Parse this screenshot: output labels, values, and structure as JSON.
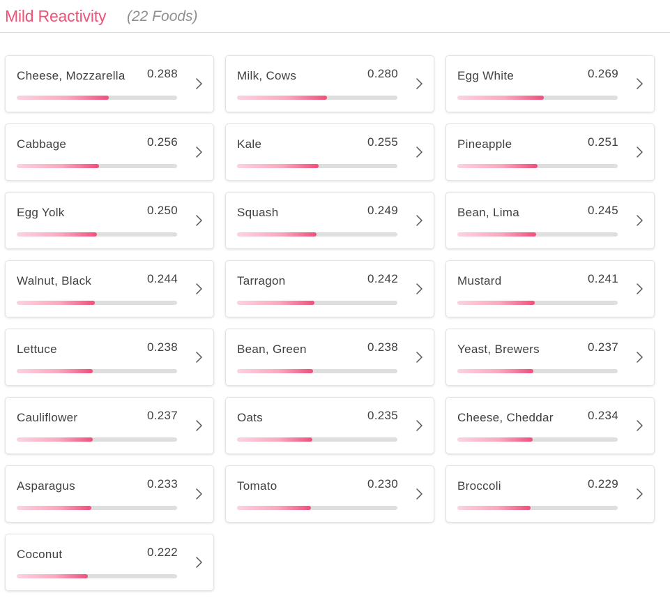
{
  "header": {
    "title": "Mild Reactivity",
    "subtitle": "(22 Foods)"
  },
  "colors": {
    "accent": "#ef5478",
    "bar_track": "#dedede",
    "bar_fill_start": "#fbd3df",
    "bar_fill_end": "#ef4f7b"
  },
  "foods": [
    {
      "name": "Cheese, Mozzarella",
      "score": "0.288",
      "level": 0.573
    },
    {
      "name": "Milk, Cows",
      "score": "0.280",
      "level": 0.561
    },
    {
      "name": "Egg White",
      "score": "0.269",
      "level": 0.539
    },
    {
      "name": "Cabbage",
      "score": "0.256",
      "level": 0.513
    },
    {
      "name": "Kale",
      "score": "0.255",
      "level": 0.509
    },
    {
      "name": "Pineapple",
      "score": "0.251",
      "level": 0.5
    },
    {
      "name": "Egg Yolk",
      "score": "0.250",
      "level": 0.5
    },
    {
      "name": "Squash",
      "score": "0.249",
      "level": 0.496
    },
    {
      "name": "Bean, Lima",
      "score": "0.245",
      "level": 0.491
    },
    {
      "name": "Walnut, Black",
      "score": "0.244",
      "level": 0.487
    },
    {
      "name": "Tarragon",
      "score": "0.242",
      "level": 0.483
    },
    {
      "name": "Mustard",
      "score": "0.241",
      "level": 0.483
    },
    {
      "name": "Lettuce",
      "score": "0.238",
      "level": 0.474
    },
    {
      "name": "Bean, Green",
      "score": "0.238",
      "level": 0.474
    },
    {
      "name": "Yeast, Brewers",
      "score": "0.237",
      "level": 0.474
    },
    {
      "name": "Cauliflower",
      "score": "0.237",
      "level": 0.474
    },
    {
      "name": "Oats",
      "score": "0.235",
      "level": 0.47
    },
    {
      "name": "Cheese, Cheddar",
      "score": "0.234",
      "level": 0.47
    },
    {
      "name": "Asparagus",
      "score": "0.233",
      "level": 0.465
    },
    {
      "name": "Tomato",
      "score": "0.230",
      "level": 0.461
    },
    {
      "name": "Broccoli",
      "score": "0.229",
      "level": 0.457
    },
    {
      "name": "Coconut",
      "score": "0.222",
      "level": 0.443
    }
  ],
  "card_icon": "chevron-right-icon"
}
